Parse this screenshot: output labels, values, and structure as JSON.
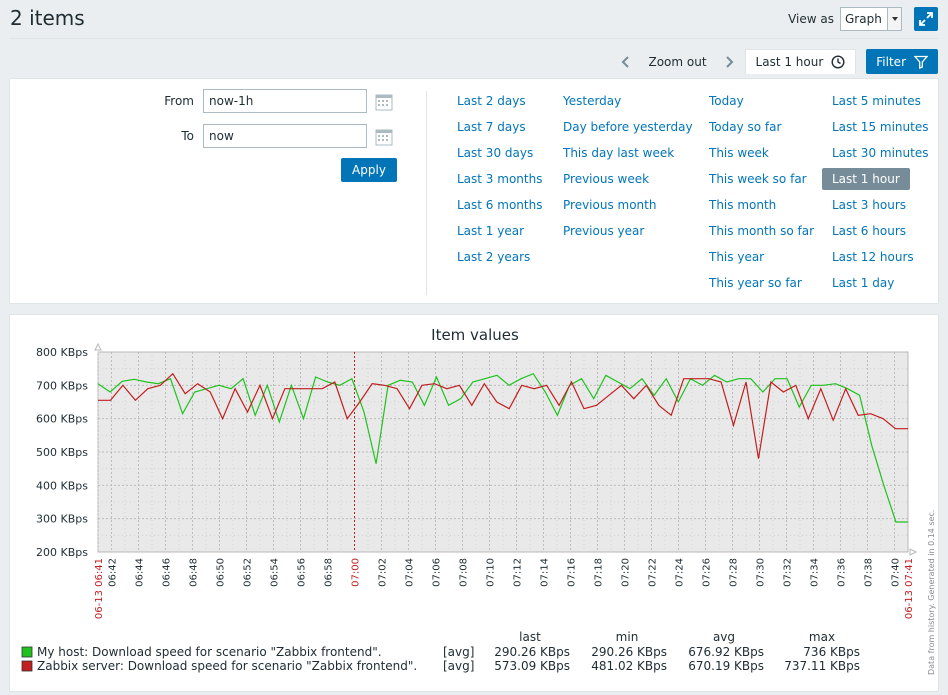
{
  "page": {
    "title": "2 items"
  },
  "header": {
    "view_as_label": "View as",
    "view_as_value": "Graph"
  },
  "tabs": {
    "zoom_out": "Zoom out",
    "active": "Last 1 hour",
    "filter": "Filter"
  },
  "filter": {
    "from_label": "From",
    "from_value": "now-1h",
    "to_label": "To",
    "to_value": "now",
    "apply": "Apply",
    "quick_ranges": [
      [
        "Last 2 days",
        "Last 7 days",
        "Last 30 days",
        "Last 3 months",
        "Last 6 months",
        "Last 1 year",
        "Last 2 years"
      ],
      [
        "Yesterday",
        "Day before yesterday",
        "This day last week",
        "Previous week",
        "Previous month",
        "Previous year"
      ],
      [
        "Today",
        "Today so far",
        "This week",
        "This week so far",
        "This month",
        "This month so far",
        "This year",
        "This year so far"
      ],
      [
        "Last 5 minutes",
        "Last 15 minutes",
        "Last 30 minutes",
        "Last 1 hour",
        "Last 3 hours",
        "Last 6 hours",
        "Last 12 hours",
        "Last 1 day"
      ]
    ],
    "selected_range": "Last 1 hour"
  },
  "chart_data": {
    "type": "line",
    "title": "Item values",
    "ylim": [
      200,
      800
    ],
    "y_ticks": [
      "800 KBps",
      "700 KBps",
      "600 KBps",
      "500 KBps",
      "400 KBps",
      "300 KBps",
      "200 KBps"
    ],
    "x_ticks": [
      "06:42",
      "06:44",
      "06:46",
      "06:48",
      "06:50",
      "06:52",
      "06:54",
      "06:56",
      "06:58",
      "07:00",
      "07:02",
      "07:04",
      "07:06",
      "07:08",
      "07:10",
      "07:12",
      "07:14",
      "07:16",
      "07:18",
      "07:20",
      "07:22",
      "07:24",
      "07:26",
      "07:28",
      "07:30",
      "07:32",
      "07:34",
      "07:36",
      "07:38",
      "07:40"
    ],
    "x_start_label": "06-13 06:41",
    "x_end_label": "06-13 07:41",
    "x_highlight": "07:00",
    "side_note": "Data from history. Generated in 0.14 sec.",
    "grid": true,
    "legend": {
      "headers": [
        "last",
        "min",
        "avg",
        "max"
      ],
      "rows": [
        {
          "name": "My host: Download speed for scenario \"Zabbix frontend\".",
          "func": "[avg]",
          "color": "#1fc21f",
          "last": "290.26 KBps",
          "min": "290.26 KBps",
          "avg": "676.92 KBps",
          "max": "736 KBps"
        },
        {
          "name": "Zabbix server: Download speed for scenario \"Zabbix frontend\".",
          "func": "[avg]",
          "color": "#c21f1f",
          "last": "573.09 KBps",
          "min": "481.02 KBps",
          "avg": "670.19 KBps",
          "max": "737.11 KBps"
        }
      ]
    },
    "series": [
      {
        "name": "My host: Download speed for scenario \"Zabbix frontend\".",
        "color": "#1fc21f",
        "values": [
          705,
          680,
          712,
          718,
          710,
          705,
          720,
          615,
          680,
          690,
          700,
          690,
          720,
          610,
          700,
          590,
          700,
          600,
          725,
          710,
          700,
          720,
          620,
          465,
          700,
          715,
          710,
          640,
          725,
          640,
          660,
          710,
          720,
          730,
          700,
          720,
          735,
          680,
          610,
          700,
          720,
          660,
          730,
          710,
          690,
          720,
          670,
          720,
          650,
          720,
          700,
          730,
          710,
          720,
          720,
          680,
          720,
          720,
          635,
          700,
          700,
          705,
          690,
          670,
          520,
          400,
          290,
          290
        ]
      },
      {
        "name": "Zabbix server: Download speed for scenario \"Zabbix frontend\".",
        "color": "#c21f1f",
        "values": [
          655,
          655,
          700,
          655,
          690,
          700,
          735,
          675,
          705,
          680,
          600,
          690,
          620,
          700,
          600,
          690,
          690,
          690,
          690,
          710,
          600,
          650,
          705,
          700,
          690,
          630,
          700,
          705,
          690,
          700,
          640,
          705,
          650,
          630,
          700,
          690,
          700,
          640,
          710,
          630,
          640,
          670,
          700,
          660,
          700,
          640,
          610,
          720,
          720,
          720,
          710,
          580,
          710,
          480,
          710,
          680,
          700,
          600,
          690,
          595,
          690,
          610,
          615,
          600,
          570,
          570
        ]
      }
    ]
  }
}
